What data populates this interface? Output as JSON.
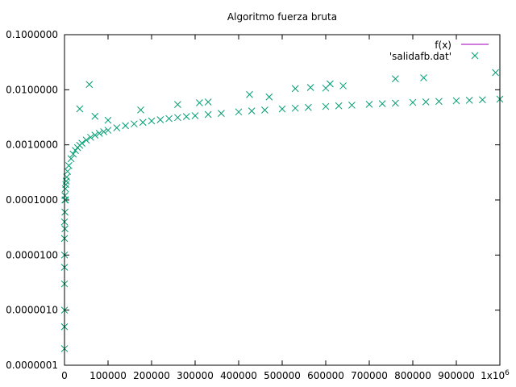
{
  "chart_data": {
    "type": "scatter",
    "title": "Algoritmo fuerza bruta",
    "xlabel": "",
    "ylabel": "",
    "xlim": [
      0,
      1000000
    ],
    "ylim": [
      1e-07,
      0.1
    ],
    "yscale": "log",
    "grid": false,
    "legend_position": "top-right",
    "x_ticks": [
      0,
      100000,
      200000,
      300000,
      400000,
      500000,
      600000,
      700000,
      800000,
      900000,
      1000000
    ],
    "x_tick_labels": [
      "0",
      "100000",
      "200000",
      "300000",
      "400000",
      "500000",
      "600000",
      "700000",
      "800000",
      "900000",
      "1x10^6"
    ],
    "y_ticks": [
      1e-07,
      1e-06,
      1e-05,
      0.0001,
      0.001,
      0.01,
      0.1
    ],
    "y_tick_labels": [
      "0.0000001",
      "0.0000010",
      "0.0000100",
      "0.0001000",
      "0.0010000",
      "0.0100000",
      "0.1000000"
    ],
    "series": [
      {
        "name": "f(x)",
        "kind": "line",
        "color": "#c050d0",
        "x": [],
        "y": []
      },
      {
        "name": "'salidafb.dat'",
        "kind": "points",
        "marker": "x",
        "color": "#009e73",
        "x": [
          0,
          0,
          0,
          0,
          0,
          0,
          0,
          0,
          1000,
          1000,
          1000,
          1000,
          2000,
          2000,
          3000,
          4000,
          5000,
          7000,
          10000,
          15000,
          20000,
          25000,
          30000,
          35000,
          40000,
          50000,
          60000,
          70000,
          80000,
          90000,
          100000,
          120000,
          140000,
          160000,
          180000,
          200000,
          220000,
          240000,
          260000,
          280000,
          300000,
          330000,
          360000,
          400000,
          430000,
          460000,
          500000,
          530000,
          560000,
          600000,
          630000,
          660000,
          700000,
          730000,
          760000,
          800000,
          830000,
          860000,
          900000,
          930000,
          960000,
          1000000,
          35000,
          57000,
          70000,
          100000,
          175000,
          260000,
          310000,
          330000,
          425000,
          470000,
          530000,
          565000,
          600000,
          610000,
          640000,
          760000,
          825000,
          990000
        ],
        "y": [
          2e-07,
          5e-07,
          1e-06,
          3e-06,
          6e-06,
          1e-05,
          2e-05,
          4e-05,
          3e-05,
          6e-05,
          0.0001,
          0.00012,
          0.0001,
          0.00016,
          0.00019,
          0.00022,
          0.00026,
          0.00033,
          0.00042,
          0.00056,
          0.00068,
          0.00079,
          0.00089,
          0.00098,
          0.00107,
          0.00122,
          0.00137,
          0.0015,
          0.00162,
          0.00173,
          0.00184,
          0.00204,
          0.00223,
          0.0024,
          0.00256,
          0.00272,
          0.00286,
          0.003,
          0.00313,
          0.00326,
          0.00338,
          0.00356,
          0.00373,
          0.00396,
          0.00412,
          0.00428,
          0.00448,
          0.00463,
          0.00478,
          0.00497,
          0.00511,
          0.00525,
          0.00544,
          0.00558,
          0.00571,
          0.00589,
          0.00602,
          0.00615,
          0.00632,
          0.00645,
          0.00658,
          0.00675,
          0.0045,
          0.0125,
          0.0033,
          0.0028,
          0.0043,
          0.0054,
          0.0058,
          0.006,
          0.0082,
          0.0074,
          0.0105,
          0.011,
          0.0107,
          0.0128,
          0.0118,
          0.0158,
          0.0165,
          0.0205
        ]
      }
    ]
  }
}
